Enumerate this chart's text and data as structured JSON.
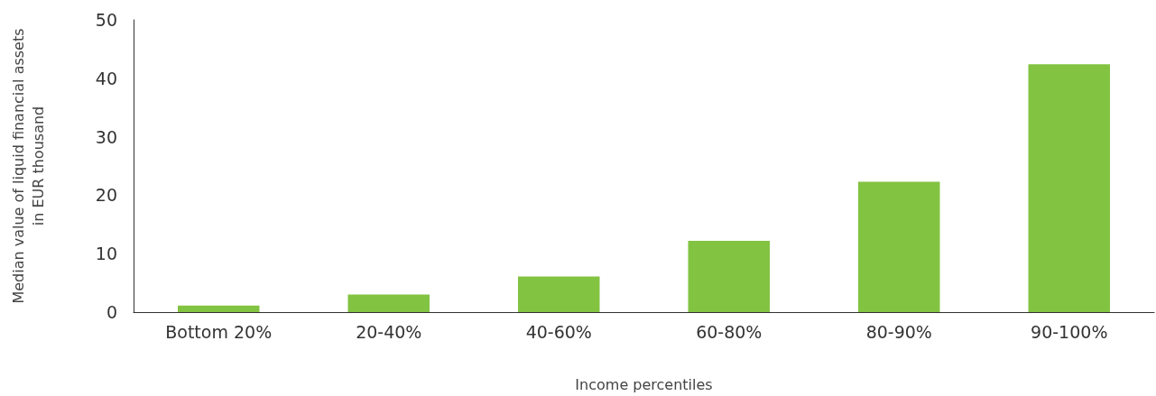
{
  "chart_data": {
    "type": "bar",
    "xlabel": "Income percentiles",
    "ylabel": "Median value of liquid financial assets\nin EUR thousand",
    "categories": [
      "Bottom 20%",
      "20-40%",
      "40-60%",
      "60-80%",
      "80-90%",
      "90-100%"
    ],
    "values": [
      1.1,
      3.0,
      6.1,
      12.2,
      22.3,
      42.4
    ],
    "color": "#82c341",
    "ylim": [
      0,
      50
    ],
    "yticks": [
      0,
      10,
      20,
      30,
      40,
      50
    ],
    "grid": false
  }
}
